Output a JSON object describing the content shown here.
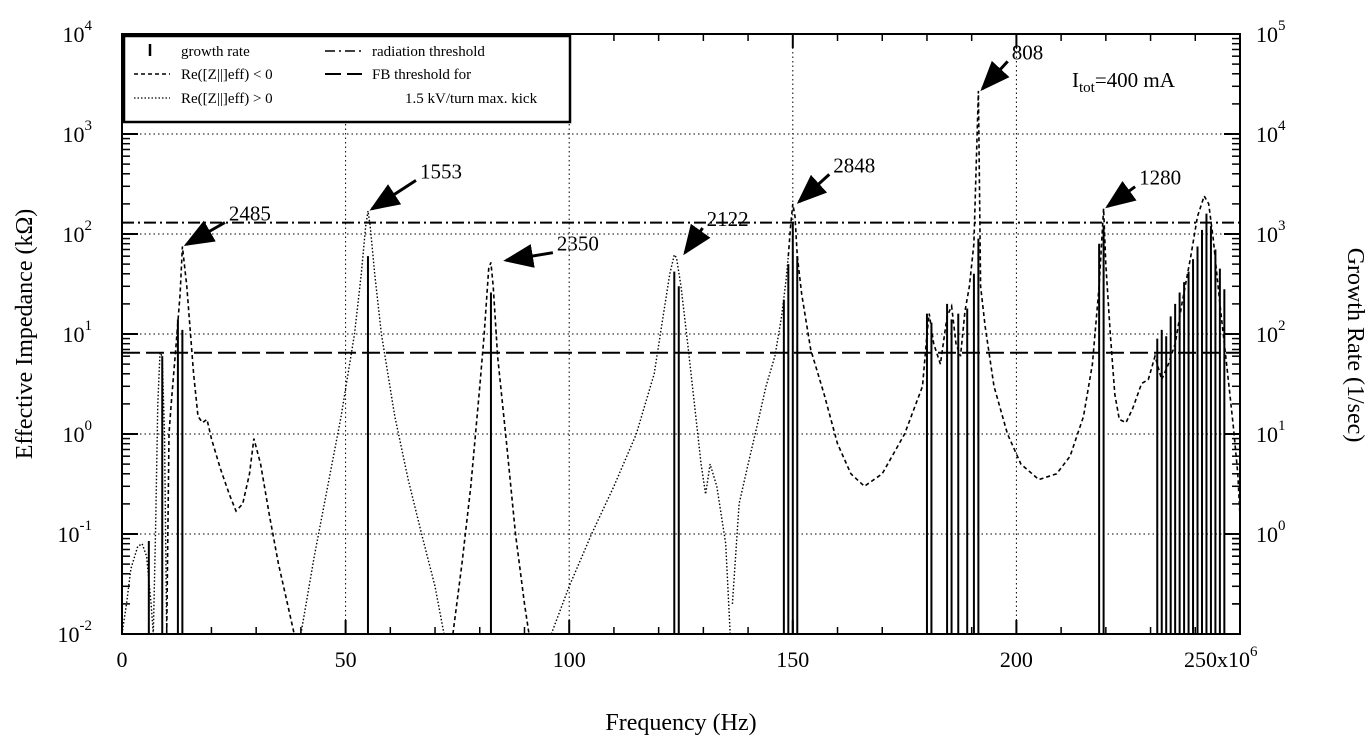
{
  "chart_data": {
    "type": "line",
    "title": "",
    "xlabel": "Frequency (Hz)",
    "ylabel": "Effective Impedance (kΩ)",
    "y2label": "Growth Rate (1/sec)",
    "x_scale_label": "250x10",
    "x_scale_exponent": "6",
    "xlim": [
      0,
      250
    ],
    "x_ticks": [
      {
        "value": 0,
        "label": "0"
      },
      {
        "value": 50,
        "label": "50"
      },
      {
        "value": 100,
        "label": "100"
      },
      {
        "value": 150,
        "label": "150"
      },
      {
        "value": 200,
        "label": "200"
      }
    ],
    "y_scale": "log",
    "ylim": [
      0.01,
      10000
    ],
    "y_ticks": [
      {
        "value": 0.01,
        "base": "10",
        "exp": "-2"
      },
      {
        "value": 0.1,
        "base": "10",
        "exp": "-1"
      },
      {
        "value": 1,
        "base": "10",
        "exp": "0"
      },
      {
        "value": 10,
        "base": "10",
        "exp": "1"
      },
      {
        "value": 100,
        "base": "10",
        "exp": "2"
      },
      {
        "value": 1000,
        "base": "10",
        "exp": "3"
      },
      {
        "value": 10000,
        "base": "10",
        "exp": "4"
      }
    ],
    "y2_scale": "log",
    "y2lim": [
      0.1,
      100000
    ],
    "y2_ticks": [
      {
        "value": 1,
        "base": "10",
        "exp": "0"
      },
      {
        "value": 10,
        "base": "10",
        "exp": "1"
      },
      {
        "value": 100,
        "base": "10",
        "exp": "2"
      },
      {
        "value": 1000,
        "base": "10",
        "exp": "3"
      },
      {
        "value": 10000,
        "base": "10",
        "exp": "4"
      },
      {
        "value": 100000,
        "base": "10",
        "exp": "5"
      }
    ],
    "grid": true,
    "legend_position": "top-left",
    "legend": [
      {
        "style": "bar",
        "label": "growth rate"
      },
      {
        "style": "dashed",
        "label": "Re([Z||]eff) < 0"
      },
      {
        "style": "dotted",
        "label": "Re([Z||]eff) > 0"
      },
      {
        "style": "dashdot",
        "label": "radiation threshold"
      },
      {
        "style": "longdash",
        "label": "FB threshold for"
      },
      {
        "style": "none",
        "label": "1.5 kV/turn max. kick"
      }
    ],
    "thresholds": [
      {
        "name": "radiation threshold",
        "y": 130,
        "style": "dashdot"
      },
      {
        "name": "FB threshold for 1.5 kV/turn max. kick",
        "y": 6.5,
        "style": "longdash"
      }
    ],
    "annotation_current": {
      "prefix": "I",
      "sub": "tot",
      "suffix": "=400 mA"
    },
    "peak_labels": [
      {
        "label": "2485",
        "x": 13.5,
        "y": 75
      },
      {
        "label": "1553",
        "x": 55,
        "y": 170
      },
      {
        "label": "2350",
        "x": 85,
        "y": 52
      },
      {
        "label": "2122",
        "x": 125,
        "y": 62
      },
      {
        "label": "2848",
        "x": 150.5,
        "y": 200
      },
      {
        "label": "808",
        "x": 191.5,
        "y": 2700
      },
      {
        "label": "1280",
        "x": 219.5,
        "y": 180
      }
    ],
    "growth_rate_bars": [
      {
        "x": 6.0,
        "value": 0.85
      },
      {
        "x": 9.0,
        "value": 60
      },
      {
        "x": 12.5,
        "value": 140
      },
      {
        "x": 13.5,
        "value": 110
      },
      {
        "x": 55.0,
        "value": 600
      },
      {
        "x": 82.5,
        "value": 260
      },
      {
        "x": 123.5,
        "value": 420
      },
      {
        "x": 124.5,
        "value": 300
      },
      {
        "x": 148.0,
        "value": 220
      },
      {
        "x": 149.0,
        "value": 500
      },
      {
        "x": 150.0,
        "value": 1300
      },
      {
        "x": 151.0,
        "value": 600
      },
      {
        "x": 180.0,
        "value": 160
      },
      {
        "x": 181.0,
        "value": 130
      },
      {
        "x": 184.5,
        "value": 200
      },
      {
        "x": 185.5,
        "value": 140
      },
      {
        "x": 187.0,
        "value": 160
      },
      {
        "x": 189.0,
        "value": 180
      },
      {
        "x": 190.5,
        "value": 400
      },
      {
        "x": 191.5,
        "value": 900
      },
      {
        "x": 218.5,
        "value": 800
      },
      {
        "x": 219.5,
        "value": 1200
      },
      {
        "x": 231.5,
        "value": 90
      },
      {
        "x": 232.5,
        "value": 110
      },
      {
        "x": 233.5,
        "value": 95
      },
      {
        "x": 234.5,
        "value": 150
      },
      {
        "x": 235.5,
        "value": 200
      },
      {
        "x": 236.5,
        "value": 260
      },
      {
        "x": 237.5,
        "value": 330
      },
      {
        "x": 238.5,
        "value": 420
      },
      {
        "x": 239.5,
        "value": 560
      },
      {
        "x": 240.5,
        "value": 750
      },
      {
        "x": 241.5,
        "value": 1100
      },
      {
        "x": 242.5,
        "value": 1600
      },
      {
        "x": 243.5,
        "value": 1200
      },
      {
        "x": 244.5,
        "value": 700
      },
      {
        "x": 245.5,
        "value": 450
      },
      {
        "x": 246.5,
        "value": 280
      }
    ],
    "impedance_dotted": [
      [
        [
          0,
          0.01
        ],
        [
          1,
          0.02
        ],
        [
          2,
          0.045
        ],
        [
          3.5,
          0.075
        ],
        [
          4.5,
          0.08
        ],
        [
          5.5,
          0.06
        ],
        [
          6.5,
          0.02
        ],
        [
          7,
          0.01
        ],
        [
          7.5,
          0.1
        ],
        [
          8,
          2
        ],
        [
          8.5,
          6.5
        ],
        [
          9,
          6.0
        ],
        [
          9.5,
          1.0
        ],
        [
          10,
          0.01
        ]
      ],
      [
        [
          40,
          0.01
        ],
        [
          43,
          0.06
        ],
        [
          46,
          0.3
        ],
        [
          49,
          1.5
        ],
        [
          52,
          10
        ],
        [
          53.5,
          40
        ],
        [
          54.5,
          120
        ],
        [
          55,
          170
        ],
        [
          55.5,
          120
        ],
        [
          56.5,
          40
        ],
        [
          58,
          10
        ],
        [
          61,
          1.5
        ],
        [
          64,
          0.35
        ],
        [
          67,
          0.1
        ],
        [
          70,
          0.03
        ],
        [
          72,
          0.01
        ]
      ],
      [
        [
          96,
          0.01
        ],
        [
          100,
          0.03
        ],
        [
          105,
          0.1
        ],
        [
          110,
          0.3
        ],
        [
          115,
          1.0
        ],
        [
          119,
          4
        ],
        [
          121,
          15
        ],
        [
          122.5,
          40
        ],
        [
          123.5,
          62
        ],
        [
          124,
          58
        ],
        [
          125,
          30
        ],
        [
          126.5,
          8
        ],
        [
          128,
          2
        ],
        [
          129.5,
          0.5
        ],
        [
          130.5,
          0.25
        ],
        [
          131.5,
          0.5
        ],
        [
          133,
          0.3
        ],
        [
          135,
          0.08
        ],
        [
          136,
          0.01
        ]
      ],
      [
        [
          136.5,
          0.02
        ],
        [
          138,
          0.2
        ],
        [
          140,
          0.5
        ],
        [
          142,
          1.2
        ],
        [
          144,
          3
        ],
        [
          146,
          6
        ],
        [
          147.5,
          15
        ],
        [
          148.5,
          35
        ],
        [
          149,
          60
        ]
      ]
    ],
    "impedance_dashed": [
      [
        [
          10,
          0.01
        ],
        [
          10.5,
          1.0
        ],
        [
          11,
          2
        ],
        [
          12,
          7
        ],
        [
          13,
          25
        ],
        [
          13.5,
          75
        ],
        [
          14.5,
          30
        ],
        [
          16,
          4
        ],
        [
          17,
          1.5
        ],
        [
          18,
          1.3
        ],
        [
          19,
          1.4
        ],
        [
          20,
          0.9
        ],
        [
          22,
          0.45
        ],
        [
          24,
          0.25
        ],
        [
          25.5,
          0.17
        ],
        [
          27,
          0.2
        ],
        [
          28.5,
          0.4
        ],
        [
          29.5,
          0.9
        ],
        [
          31,
          0.5
        ],
        [
          33,
          0.15
        ],
        [
          35,
          0.05
        ],
        [
          37,
          0.02
        ],
        [
          38.5,
          0.01
        ]
      ],
      [
        [
          74,
          0.01
        ],
        [
          76,
          0.05
        ],
        [
          78,
          0.3
        ],
        [
          80,
          3
        ],
        [
          81,
          10
        ],
        [
          82,
          45
        ],
        [
          82.5,
          52
        ],
        [
          83,
          30
        ],
        [
          84,
          6
        ],
        [
          86,
          0.8
        ],
        [
          88,
          0.1
        ],
        [
          90,
          0.02
        ],
        [
          91,
          0.01
        ]
      ],
      [
        [
          149,
          60
        ],
        [
          149.5,
          120
        ],
        [
          150,
          200
        ],
        [
          150.5,
          150
        ],
        [
          151,
          60
        ],
        [
          152,
          25
        ],
        [
          154,
          7
        ],
        [
          157,
          2.5
        ],
        [
          160,
          0.8
        ],
        [
          163,
          0.4
        ],
        [
          166,
          0.3
        ],
        [
          170,
          0.4
        ],
        [
          175,
          1
        ],
        [
          179,
          3
        ],
        [
          180,
          10
        ],
        [
          180.5,
          16
        ],
        [
          181.5,
          8
        ],
        [
          183,
          5
        ],
        [
          184.5,
          15
        ],
        [
          185.5,
          19
        ],
        [
          186.5,
          8
        ],
        [
          187.5,
          6
        ],
        [
          188.5,
          17
        ],
        [
          189.5,
          30
        ],
        [
          190.5,
          80
        ],
        [
          191.5,
          2700
        ],
        [
          192,
          30
        ],
        [
          193,
          12
        ],
        [
          195,
          3
        ],
        [
          198,
          1
        ],
        [
          201,
          0.5
        ],
        [
          205,
          0.35
        ],
        [
          209,
          0.4
        ],
        [
          212,
          0.6
        ],
        [
          215,
          1.5
        ],
        [
          217,
          5
        ],
        [
          218.5,
          30
        ],
        [
          219.5,
          180
        ],
        [
          220,
          50
        ],
        [
          221,
          10
        ],
        [
          222,
          2.5
        ],
        [
          223,
          1.4
        ],
        [
          224.5,
          1.3
        ],
        [
          226,
          1.8
        ],
        [
          228,
          3.2
        ],
        [
          229.5,
          3.5
        ],
        [
          231,
          6
        ],
        [
          232.5,
          3.5
        ],
        [
          234,
          5
        ],
        [
          235.5,
          8
        ],
        [
          237,
          20
        ],
        [
          239,
          60
        ],
        [
          240.5,
          150
        ],
        [
          242,
          240
        ],
        [
          243,
          200
        ],
        [
          244,
          90
        ],
        [
          245.5,
          20
        ],
        [
          247,
          5
        ],
        [
          248.5,
          1.2
        ],
        [
          249.5,
          0.4
        ],
        [
          250,
          0.15
        ]
      ]
    ]
  }
}
